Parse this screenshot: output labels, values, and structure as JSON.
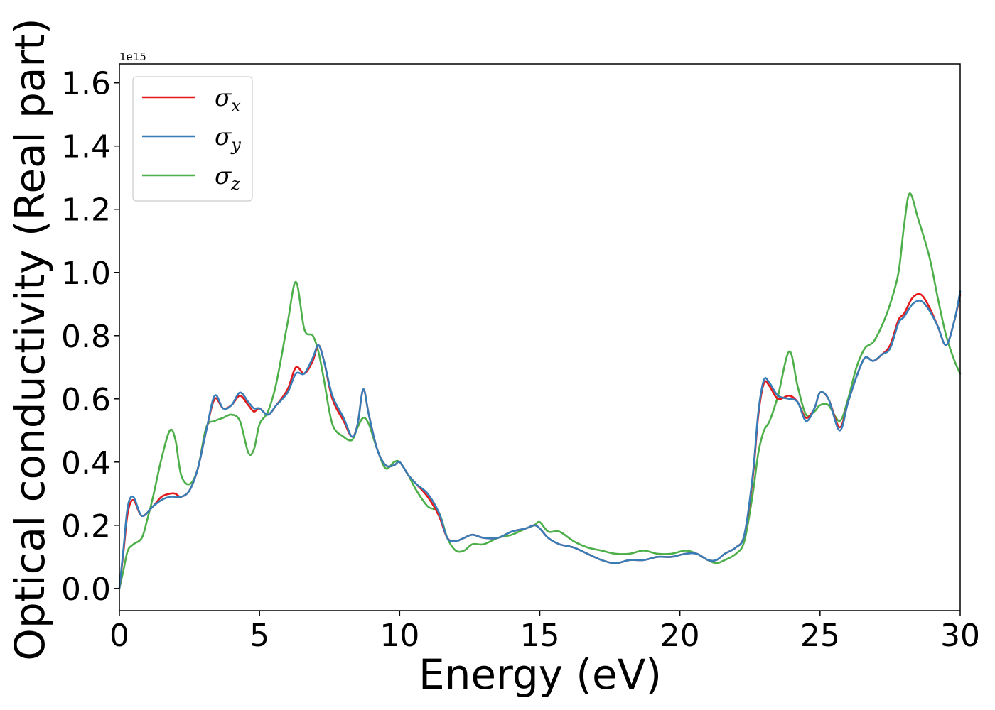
{
  "chart_data": {
    "type": "line",
    "xlabel": "Energy (eV)",
    "ylabel": "Optical conductivity (Real part)",
    "y_offset_text": "1e15",
    "xlim": [
      0,
      30
    ],
    "ylim": [
      -0.07,
      1.66
    ],
    "xticks": [
      0,
      5,
      10,
      15,
      20,
      25,
      30
    ],
    "xtick_labels": [
      "0",
      "5",
      "10",
      "15",
      "20",
      "25",
      "30"
    ],
    "yticks": [
      0.0,
      0.2,
      0.4,
      0.6,
      0.8,
      1.0,
      1.2,
      1.4,
      1.6
    ],
    "ytick_labels": [
      "0.0",
      "0.2",
      "0.4",
      "0.6",
      "0.8",
      "1.0",
      "1.2",
      "1.4",
      "1.6"
    ],
    "grid": false,
    "legend_position": "top-left",
    "series": [
      {
        "name": "σx",
        "legend_base": "σ",
        "legend_sub": "x",
        "color": "#e41a1c",
        "points": [
          [
            0,
            0.0
          ],
          [
            0.15,
            0.12
          ],
          [
            0.3,
            0.24
          ],
          [
            0.5,
            0.28
          ],
          [
            0.8,
            0.23
          ],
          [
            1.2,
            0.26
          ],
          [
            1.5,
            0.29
          ],
          [
            1.8,
            0.3
          ],
          [
            2.0,
            0.3
          ],
          [
            2.2,
            0.29
          ],
          [
            2.5,
            0.31
          ],
          [
            2.8,
            0.38
          ],
          [
            3.1,
            0.5
          ],
          [
            3.4,
            0.6
          ],
          [
            3.7,
            0.57
          ],
          [
            4.0,
            0.58
          ],
          [
            4.3,
            0.61
          ],
          [
            4.6,
            0.58
          ],
          [
            4.8,
            0.56
          ],
          [
            5.0,
            0.57
          ],
          [
            5.3,
            0.55
          ],
          [
            5.6,
            0.58
          ],
          [
            6.0,
            0.63
          ],
          [
            6.3,
            0.7
          ],
          [
            6.6,
            0.68
          ],
          [
            6.9,
            0.72
          ],
          [
            7.1,
            0.77
          ],
          [
            7.3,
            0.72
          ],
          [
            7.6,
            0.6
          ],
          [
            8.0,
            0.53
          ],
          [
            8.3,
            0.48
          ],
          [
            8.5,
            0.52
          ],
          [
            8.7,
            0.63
          ],
          [
            8.9,
            0.55
          ],
          [
            9.2,
            0.44
          ],
          [
            9.5,
            0.39
          ],
          [
            9.8,
            0.39
          ],
          [
            10.0,
            0.4
          ],
          [
            10.3,
            0.36
          ],
          [
            10.6,
            0.33
          ],
          [
            11.0,
            0.29
          ],
          [
            11.4,
            0.23
          ],
          [
            11.7,
            0.16
          ],
          [
            12.0,
            0.15
          ],
          [
            12.3,
            0.16
          ],
          [
            12.6,
            0.17
          ],
          [
            13.0,
            0.16
          ],
          [
            13.5,
            0.16
          ],
          [
            14.0,
            0.18
          ],
          [
            14.5,
            0.19
          ],
          [
            14.8,
            0.2
          ],
          [
            15.0,
            0.19
          ],
          [
            15.3,
            0.16
          ],
          [
            15.7,
            0.14
          ],
          [
            16.2,
            0.13
          ],
          [
            16.7,
            0.11
          ],
          [
            17.2,
            0.09
          ],
          [
            17.7,
            0.08
          ],
          [
            18.2,
            0.09
          ],
          [
            18.7,
            0.09
          ],
          [
            19.2,
            0.1
          ],
          [
            19.7,
            0.1
          ],
          [
            20.2,
            0.11
          ],
          [
            20.6,
            0.11
          ],
          [
            21.0,
            0.09
          ],
          [
            21.3,
            0.09
          ],
          [
            21.6,
            0.11
          ],
          [
            22.0,
            0.13
          ],
          [
            22.3,
            0.17
          ],
          [
            22.6,
            0.35
          ],
          [
            22.8,
            0.55
          ],
          [
            23.0,
            0.65
          ],
          [
            23.2,
            0.64
          ],
          [
            23.5,
            0.6
          ],
          [
            23.9,
            0.61
          ],
          [
            24.2,
            0.59
          ],
          [
            24.5,
            0.54
          ],
          [
            24.8,
            0.57
          ],
          [
            25.0,
            0.62
          ],
          [
            25.3,
            0.6
          ],
          [
            25.7,
            0.51
          ],
          [
            26.0,
            0.59
          ],
          [
            26.3,
            0.67
          ],
          [
            26.6,
            0.73
          ],
          [
            26.9,
            0.72
          ],
          [
            27.2,
            0.74
          ],
          [
            27.5,
            0.77
          ],
          [
            27.8,
            0.85
          ],
          [
            28.0,
            0.87
          ],
          [
            28.3,
            0.92
          ],
          [
            28.6,
            0.93
          ],
          [
            28.9,
            0.89
          ],
          [
            29.2,
            0.83
          ],
          [
            29.5,
            0.77
          ],
          [
            29.8,
            0.85
          ],
          [
            30.0,
            0.93
          ]
        ]
      },
      {
        "name": "σy",
        "legend_base": "σ",
        "legend_sub": "y",
        "color": "#377eb8",
        "points": [
          [
            0,
            0.0
          ],
          [
            0.15,
            0.13
          ],
          [
            0.3,
            0.26
          ],
          [
            0.5,
            0.29
          ],
          [
            0.8,
            0.23
          ],
          [
            1.2,
            0.26
          ],
          [
            1.5,
            0.28
          ],
          [
            1.8,
            0.29
          ],
          [
            2.0,
            0.29
          ],
          [
            2.2,
            0.29
          ],
          [
            2.5,
            0.31
          ],
          [
            2.8,
            0.38
          ],
          [
            3.1,
            0.5
          ],
          [
            3.4,
            0.61
          ],
          [
            3.7,
            0.57
          ],
          [
            4.0,
            0.58
          ],
          [
            4.3,
            0.62
          ],
          [
            4.6,
            0.59
          ],
          [
            4.8,
            0.57
          ],
          [
            5.0,
            0.57
          ],
          [
            5.3,
            0.55
          ],
          [
            5.6,
            0.58
          ],
          [
            6.0,
            0.62
          ],
          [
            6.3,
            0.68
          ],
          [
            6.6,
            0.68
          ],
          [
            6.9,
            0.73
          ],
          [
            7.1,
            0.77
          ],
          [
            7.3,
            0.72
          ],
          [
            7.6,
            0.61
          ],
          [
            8.0,
            0.54
          ],
          [
            8.3,
            0.48
          ],
          [
            8.5,
            0.52
          ],
          [
            8.7,
            0.63
          ],
          [
            8.9,
            0.55
          ],
          [
            9.2,
            0.44
          ],
          [
            9.5,
            0.39
          ],
          [
            9.8,
            0.39
          ],
          [
            10.0,
            0.4
          ],
          [
            10.3,
            0.36
          ],
          [
            10.6,
            0.33
          ],
          [
            11.0,
            0.3
          ],
          [
            11.4,
            0.24
          ],
          [
            11.7,
            0.16
          ],
          [
            12.0,
            0.15
          ],
          [
            12.3,
            0.16
          ],
          [
            12.6,
            0.17
          ],
          [
            13.0,
            0.16
          ],
          [
            13.5,
            0.16
          ],
          [
            14.0,
            0.18
          ],
          [
            14.5,
            0.19
          ],
          [
            14.8,
            0.2
          ],
          [
            15.0,
            0.19
          ],
          [
            15.3,
            0.16
          ],
          [
            15.7,
            0.14
          ],
          [
            16.2,
            0.13
          ],
          [
            16.7,
            0.11
          ],
          [
            17.2,
            0.09
          ],
          [
            17.7,
            0.08
          ],
          [
            18.2,
            0.09
          ],
          [
            18.7,
            0.09
          ],
          [
            19.2,
            0.1
          ],
          [
            19.7,
            0.1
          ],
          [
            20.2,
            0.11
          ],
          [
            20.6,
            0.11
          ],
          [
            21.0,
            0.09
          ],
          [
            21.3,
            0.09
          ],
          [
            21.6,
            0.11
          ],
          [
            22.0,
            0.13
          ],
          [
            22.3,
            0.17
          ],
          [
            22.6,
            0.36
          ],
          [
            22.8,
            0.56
          ],
          [
            23.0,
            0.66
          ],
          [
            23.2,
            0.65
          ],
          [
            23.5,
            0.61
          ],
          [
            23.9,
            0.6
          ],
          [
            24.2,
            0.59
          ],
          [
            24.5,
            0.53
          ],
          [
            24.8,
            0.57
          ],
          [
            25.0,
            0.62
          ],
          [
            25.3,
            0.6
          ],
          [
            25.7,
            0.5
          ],
          [
            26.0,
            0.59
          ],
          [
            26.3,
            0.67
          ],
          [
            26.6,
            0.73
          ],
          [
            26.9,
            0.72
          ],
          [
            27.2,
            0.74
          ],
          [
            27.5,
            0.76
          ],
          [
            27.8,
            0.84
          ],
          [
            28.0,
            0.86
          ],
          [
            28.3,
            0.9
          ],
          [
            28.6,
            0.91
          ],
          [
            28.9,
            0.88
          ],
          [
            29.2,
            0.83
          ],
          [
            29.5,
            0.77
          ],
          [
            29.8,
            0.85
          ],
          [
            30.0,
            0.94
          ]
        ]
      },
      {
        "name": "σz",
        "legend_base": "σ",
        "legend_sub": "z",
        "color": "#4daf4a",
        "points": [
          [
            0,
            0.0
          ],
          [
            0.15,
            0.06
          ],
          [
            0.3,
            0.12
          ],
          [
            0.5,
            0.14
          ],
          [
            0.8,
            0.16
          ],
          [
            1.0,
            0.22
          ],
          [
            1.2,
            0.29
          ],
          [
            1.5,
            0.41
          ],
          [
            1.8,
            0.5
          ],
          [
            2.0,
            0.47
          ],
          [
            2.2,
            0.36
          ],
          [
            2.5,
            0.33
          ],
          [
            2.8,
            0.38
          ],
          [
            3.1,
            0.51
          ],
          [
            3.4,
            0.53
          ],
          [
            3.7,
            0.54
          ],
          [
            4.0,
            0.55
          ],
          [
            4.3,
            0.53
          ],
          [
            4.6,
            0.43
          ],
          [
            4.8,
            0.44
          ],
          [
            5.0,
            0.52
          ],
          [
            5.3,
            0.56
          ],
          [
            5.6,
            0.65
          ],
          [
            6.0,
            0.84
          ],
          [
            6.3,
            0.97
          ],
          [
            6.6,
            0.82
          ],
          [
            6.9,
            0.8
          ],
          [
            7.1,
            0.75
          ],
          [
            7.3,
            0.66
          ],
          [
            7.6,
            0.52
          ],
          [
            8.0,
            0.48
          ],
          [
            8.3,
            0.47
          ],
          [
            8.5,
            0.51
          ],
          [
            8.7,
            0.54
          ],
          [
            8.9,
            0.52
          ],
          [
            9.2,
            0.44
          ],
          [
            9.5,
            0.38
          ],
          [
            9.8,
            0.4
          ],
          [
            10.0,
            0.4
          ],
          [
            10.3,
            0.36
          ],
          [
            10.6,
            0.31
          ],
          [
            11.0,
            0.26
          ],
          [
            11.4,
            0.24
          ],
          [
            11.7,
            0.16
          ],
          [
            12.0,
            0.12
          ],
          [
            12.3,
            0.12
          ],
          [
            12.6,
            0.14
          ],
          [
            13.0,
            0.14
          ],
          [
            13.5,
            0.16
          ],
          [
            14.0,
            0.17
          ],
          [
            14.5,
            0.19
          ],
          [
            14.8,
            0.2
          ],
          [
            15.0,
            0.21
          ],
          [
            15.3,
            0.18
          ],
          [
            15.7,
            0.18
          ],
          [
            16.2,
            0.15
          ],
          [
            16.7,
            0.13
          ],
          [
            17.2,
            0.12
          ],
          [
            17.7,
            0.11
          ],
          [
            18.2,
            0.11
          ],
          [
            18.7,
            0.12
          ],
          [
            19.2,
            0.11
          ],
          [
            19.7,
            0.11
          ],
          [
            20.2,
            0.12
          ],
          [
            20.6,
            0.11
          ],
          [
            21.0,
            0.09
          ],
          [
            21.3,
            0.08
          ],
          [
            21.6,
            0.09
          ],
          [
            22.0,
            0.11
          ],
          [
            22.3,
            0.15
          ],
          [
            22.6,
            0.3
          ],
          [
            22.8,
            0.43
          ],
          [
            23.0,
            0.5
          ],
          [
            23.2,
            0.53
          ],
          [
            23.5,
            0.61
          ],
          [
            23.9,
            0.75
          ],
          [
            24.2,
            0.64
          ],
          [
            24.5,
            0.55
          ],
          [
            24.8,
            0.56
          ],
          [
            25.0,
            0.58
          ],
          [
            25.3,
            0.58
          ],
          [
            25.7,
            0.53
          ],
          [
            26.0,
            0.6
          ],
          [
            26.3,
            0.7
          ],
          [
            26.6,
            0.76
          ],
          [
            26.9,
            0.78
          ],
          [
            27.2,
            0.83
          ],
          [
            27.5,
            0.9
          ],
          [
            27.8,
            1.0
          ],
          [
            28.0,
            1.15
          ],
          [
            28.2,
            1.25
          ],
          [
            28.5,
            1.17
          ],
          [
            28.9,
            1.05
          ],
          [
            29.2,
            0.92
          ],
          [
            29.5,
            0.8
          ],
          [
            29.8,
            0.72
          ],
          [
            30.0,
            0.68
          ]
        ]
      }
    ]
  }
}
